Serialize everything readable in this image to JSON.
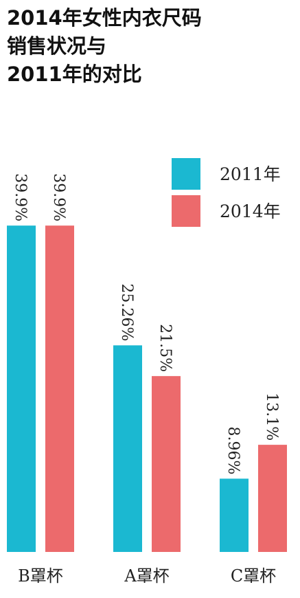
{
  "chart_data": {
    "type": "bar",
    "title": [
      "2014年女性内衣尺码",
      "销售状况与",
      "2011年的对比"
    ],
    "categories": [
      "B罩杯",
      "A罩杯",
      "C罩杯"
    ],
    "series": [
      {
        "name": "2011年",
        "color": "#1bb8d1",
        "values": [
          39.9,
          25.26,
          8.96
        ],
        "value_labels": [
          "39.9%",
          "25.26%",
          "8.96%"
        ]
      },
      {
        "name": "2014年",
        "color": "#ec6a6c",
        "values": [
          39.9,
          21.5,
          13.1
        ],
        "value_labels": [
          "39.9%",
          "21.5%",
          "13.1%"
        ]
      }
    ],
    "legend": "top-right"
  }
}
